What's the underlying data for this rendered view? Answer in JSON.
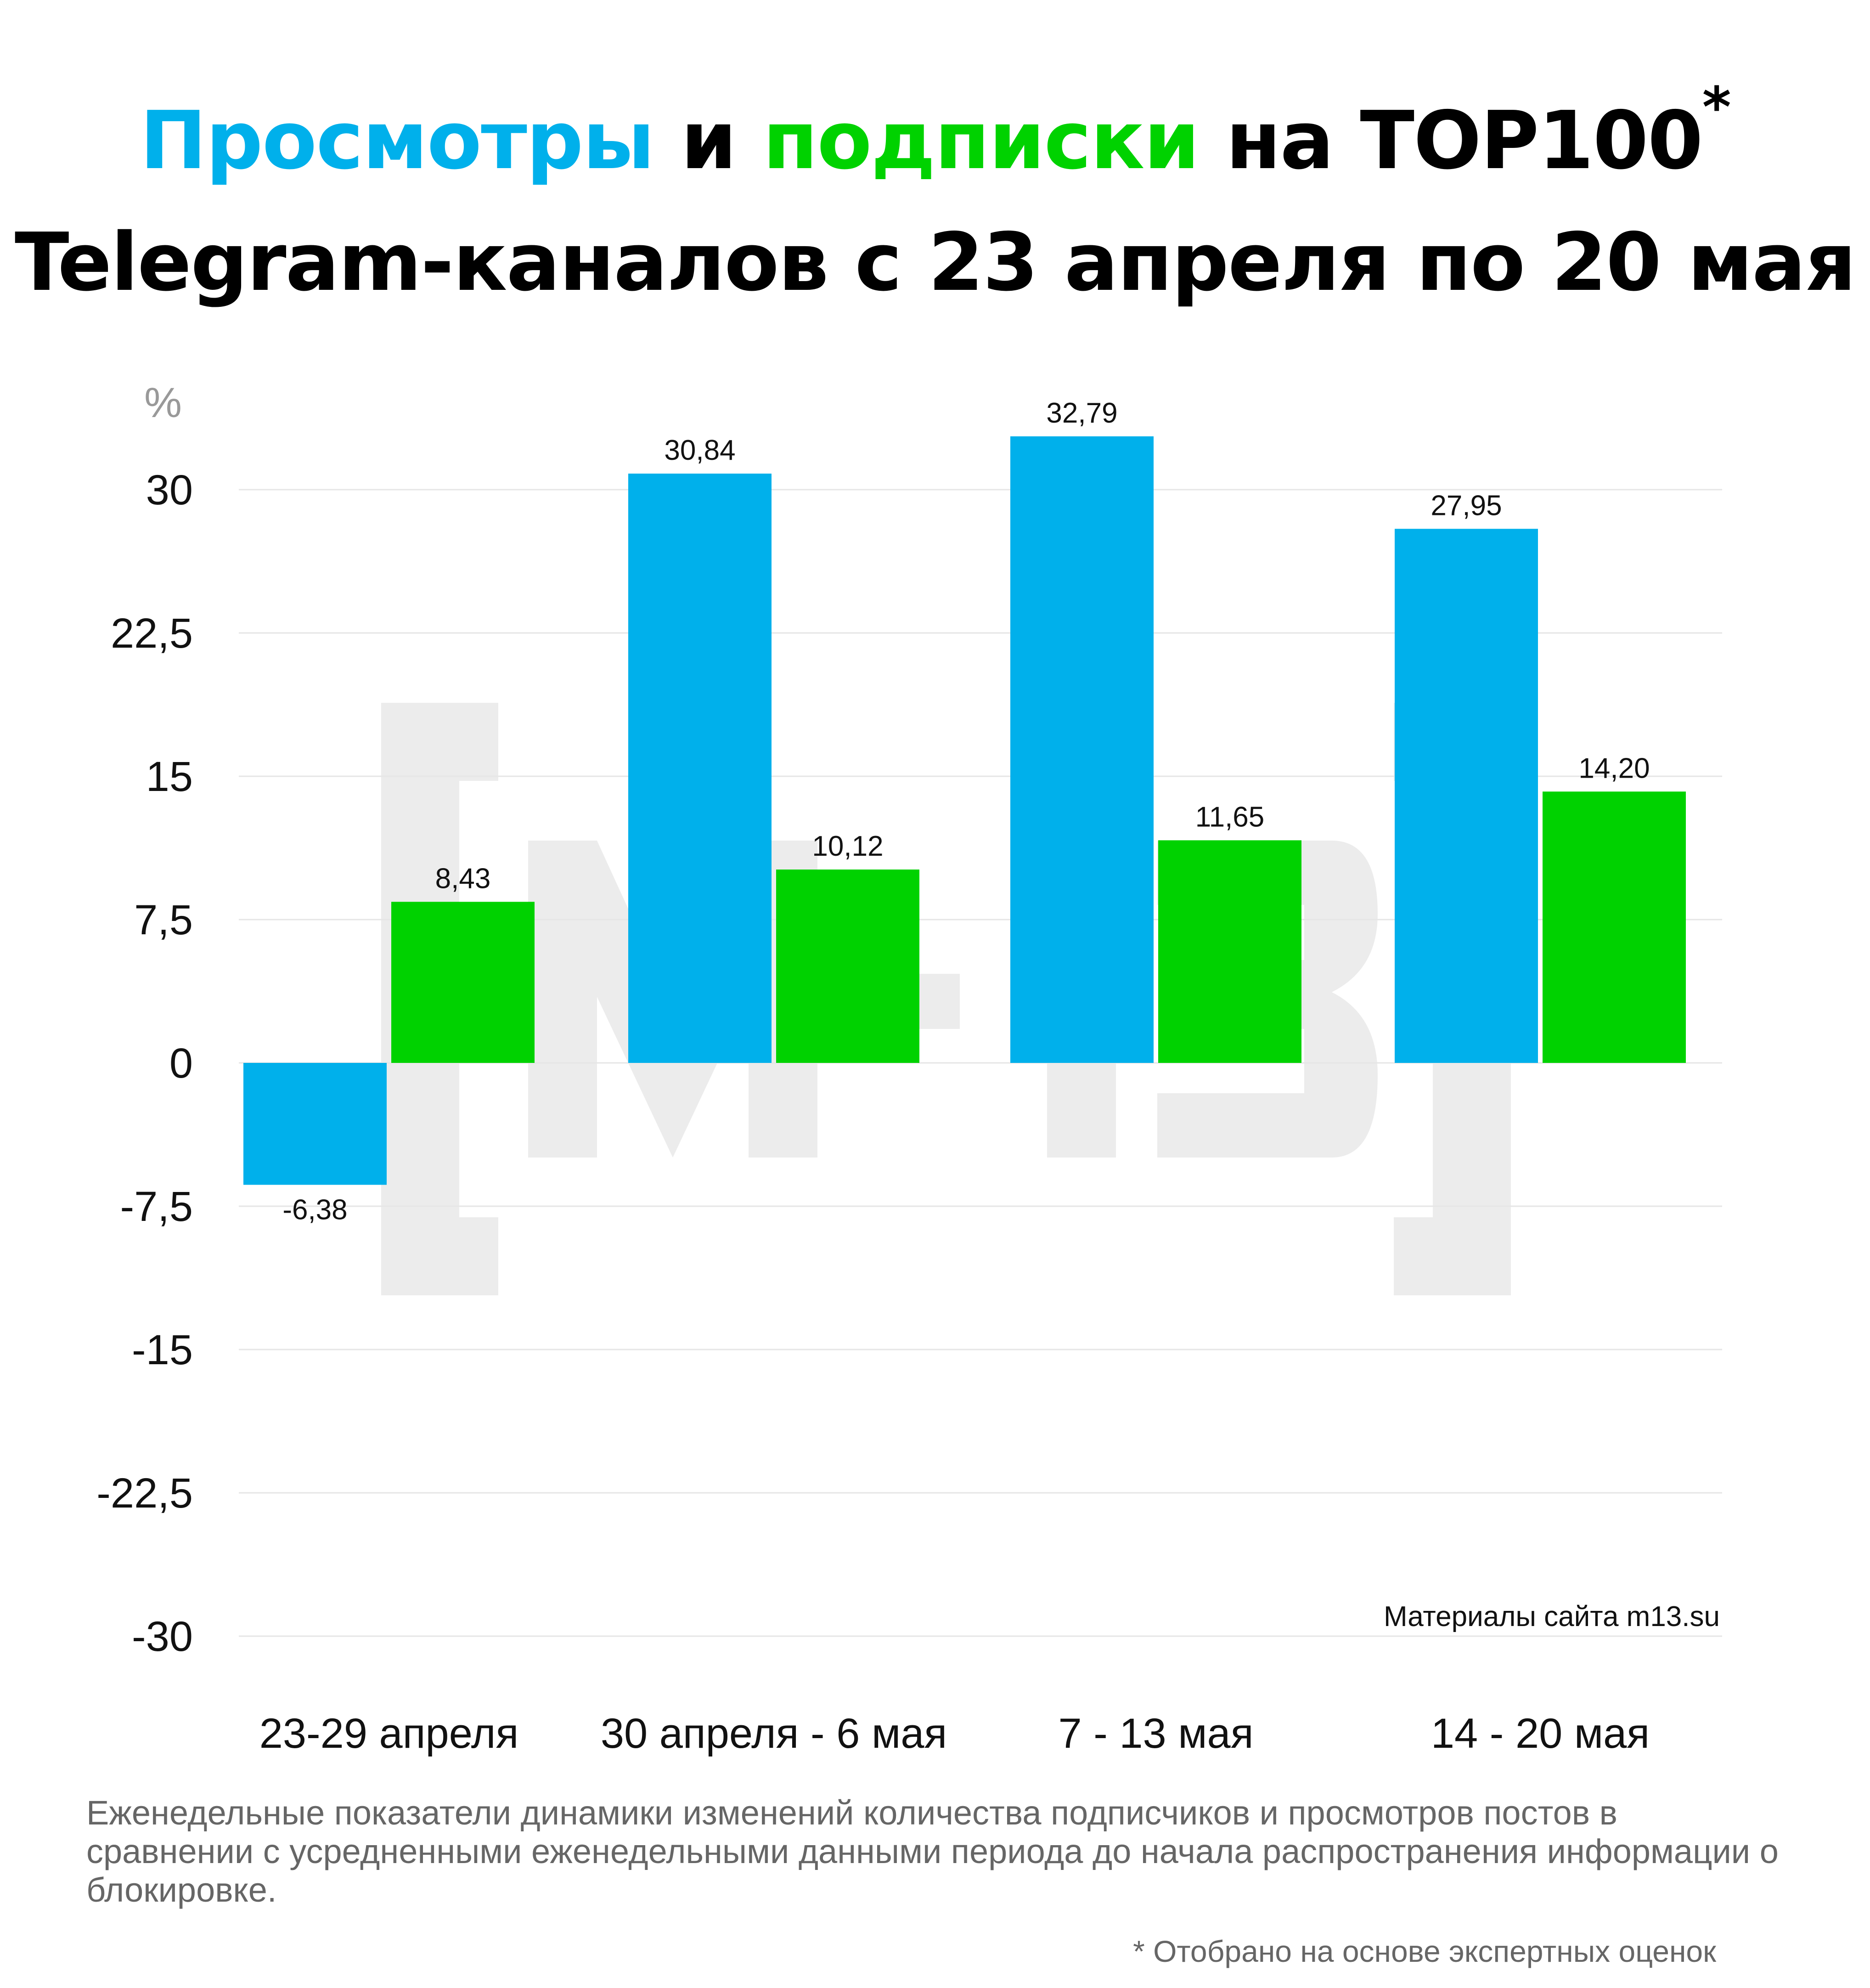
{
  "title": {
    "views_word": "Просмотры",
    "and_word": "и",
    "subs_word": "подписки",
    "rest_line1": "на TOP100",
    "star": "*",
    "line2": "Telegram-каналов с  23 апреля по 20 мая"
  },
  "colors": {
    "views": "#00b0eb",
    "subscriptions": "#00d200",
    "watermark": "#ececec",
    "grid": "#e6e6e6"
  },
  "chart_data": {
    "type": "bar",
    "unit": "%",
    "categories": [
      "23-29 апреля",
      "30 апреля - 6 мая",
      "7 - 13 мая",
      "14 - 20 мая"
    ],
    "series": [
      {
        "values": [
          -6.38,
          30.84,
          32.79,
          27.95
        ],
        "labels": [
          "-6,38",
          "30,84",
          "32,79",
          "27,95"
        ]
      },
      {
        "values": [
          8.43,
          10.12,
          11.65,
          14.2
        ],
        "labels": [
          "8,43",
          "10,12",
          "11,65",
          "14,20"
        ]
      }
    ],
    "ylim": [
      -30,
      30
    ],
    "yticks": [
      30,
      22.5,
      15,
      7.5,
      0,
      -7.5,
      -15,
      -22.5,
      -30
    ],
    "ytick_labels": [
      "30",
      "22,5",
      "15",
      "7,5",
      "0",
      "-7,5",
      "-15",
      "-22,5",
      "-30"
    ],
    "grid": true,
    "source": "Материалы сайта m13.su"
  },
  "watermark": "[M-13]",
  "footnotes": {
    "main": "Еженедельные показатели динамики изменений количества подписчиков и просмотров постов в сравнении с усредненными еженедельными данными периода до начала распространения информации о блокировке.",
    "star": "* Отобрано на основе экспертных оценок"
  }
}
